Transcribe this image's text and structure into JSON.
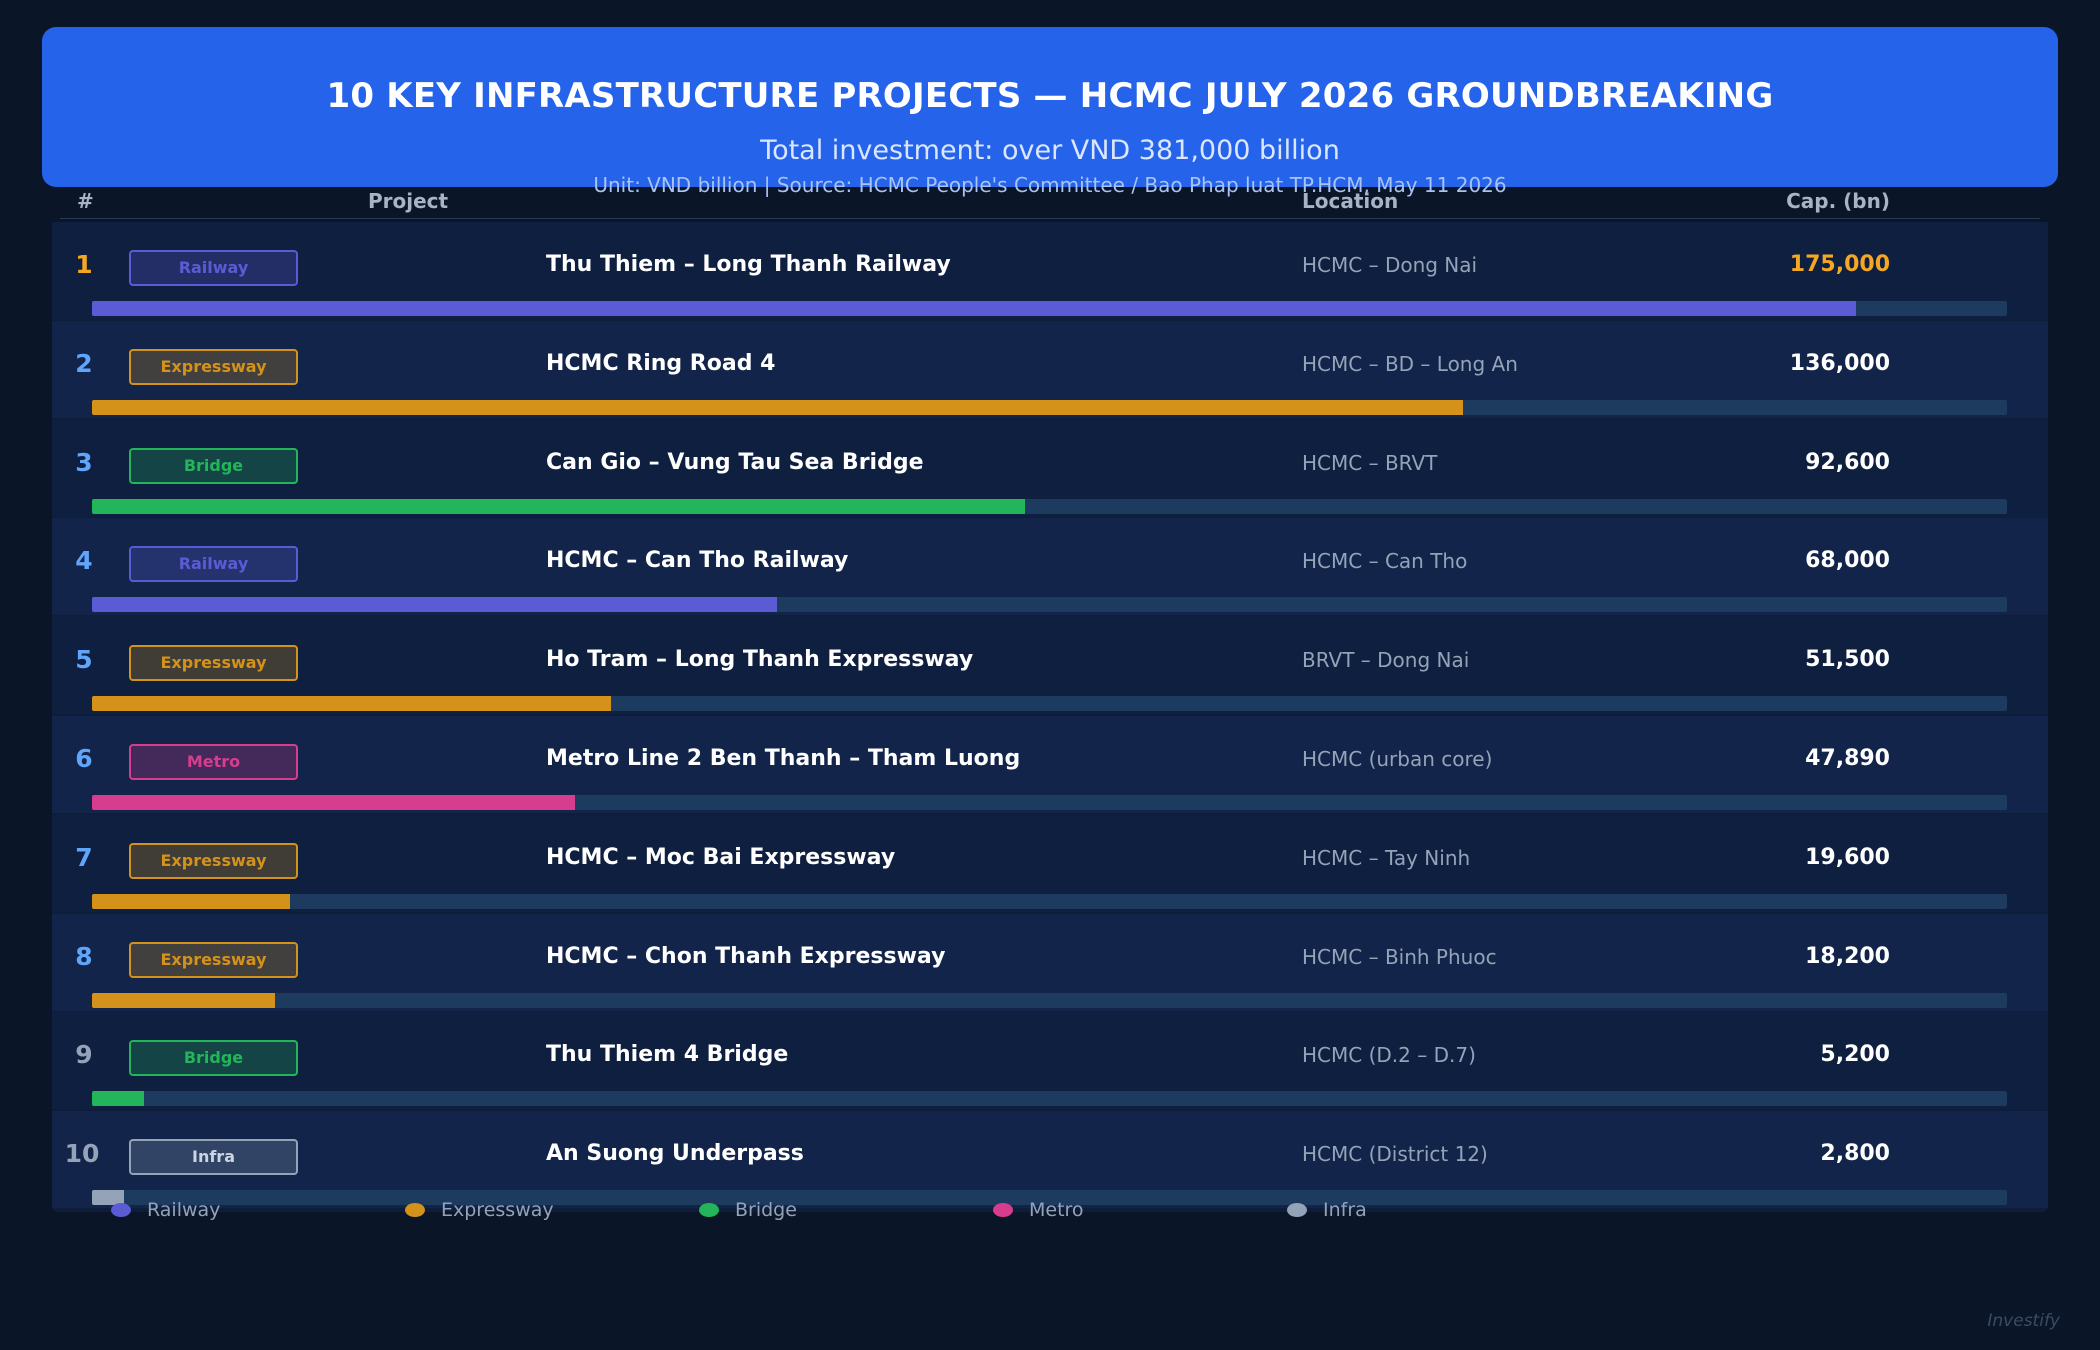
{
  "header": {
    "title": "10 KEY INFRASTRUCTURE PROJECTS — HCMC JULY 2026 GROUNDBREAKING",
    "subtitle": "Total investment: over VND 381,000 billion",
    "source": "Unit: VND billion  |  Source: HCMC People's Committee / Bao Phap luat TP.HCM, May 11 2026"
  },
  "columns": {
    "rank": "#",
    "project": "Project",
    "location": "Location",
    "capital": "Cap. (bn)"
  },
  "category_colors": {
    "Railway": "#5b5bd6",
    "Expressway": "#d4921a",
    "Bridge": "#22b55a",
    "Metro": "#d63d8f",
    "Infra": "#94a3b8"
  },
  "legend": [
    "Railway",
    "Expressway",
    "Bridge",
    "Metro",
    "Infra"
  ],
  "watermark": "Investify",
  "chart_data": {
    "type": "bar",
    "orientation": "horizontal",
    "title": "10 KEY INFRASTRUCTURE PROJECTS — HCMC JULY 2026 GROUNDBREAKING",
    "unit": "VND billion",
    "xlim": [
      0,
      190000
    ],
    "legend_position": "bottom",
    "rows": [
      {
        "rank": "1",
        "category": "Railway",
        "project": "Thu Thiem – Long Thanh Railway",
        "location": "HCMC – Dong Nai",
        "value": 175000,
        "value_label": "175,000"
      },
      {
        "rank": "2",
        "category": "Expressway",
        "project": "HCMC Ring Road 4",
        "location": "HCMC – BD – Long An",
        "value": 136000,
        "value_label": "136,000"
      },
      {
        "rank": "3",
        "category": "Bridge",
        "project": "Can Gio – Vung Tau Sea Bridge",
        "location": "HCMC – BRVT",
        "value": 92600,
        "value_label": "92,600"
      },
      {
        "rank": "4",
        "category": "Railway",
        "project": "HCMC – Can Tho Railway",
        "location": "HCMC – Can Tho",
        "value": 68000,
        "value_label": "68,000"
      },
      {
        "rank": "5",
        "category": "Expressway",
        "project": "Ho Tram – Long Thanh Expressway",
        "location": "BRVT – Dong Nai",
        "value": 51500,
        "value_label": "51,500"
      },
      {
        "rank": "6",
        "category": "Metro",
        "project": "Metro Line 2 Ben Thanh – Tham Luong",
        "location": "HCMC (urban core)",
        "value": 47890,
        "value_label": "47,890"
      },
      {
        "rank": "7",
        "category": "Expressway",
        "project": "HCMC – Moc Bai Expressway",
        "location": "HCMC – Tay Ninh",
        "value": 19600,
        "value_label": "19,600"
      },
      {
        "rank": "8",
        "category": "Expressway",
        "project": "HCMC – Chon Thanh Expressway",
        "location": "HCMC – Binh Phuoc",
        "value": 18200,
        "value_label": "18,200"
      },
      {
        "rank": "9",
        "category": "Bridge",
        "project": "Thu Thiem 4 Bridge",
        "location": "HCMC (D.2 – D.7)",
        "value": 5200,
        "value_label": "5,200"
      },
      {
        "rank": "10",
        "category": "Infra",
        "project": "An Suong Underpass",
        "location": "HCMC (District 12)",
        "value": 2800,
        "value_label": "2,800"
      }
    ]
  }
}
